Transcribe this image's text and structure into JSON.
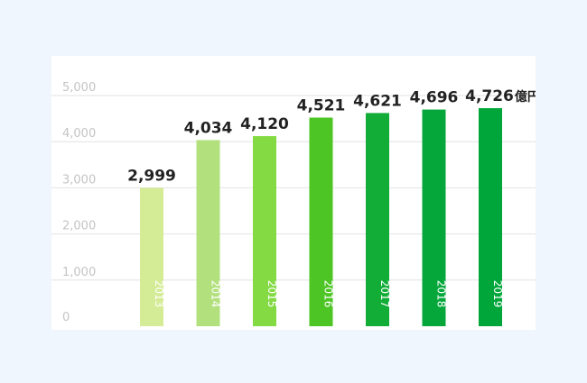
{
  "chart_data": {
    "type": "bar",
    "title": "",
    "xlabel": "",
    "ylabel": "",
    "unit": "億円",
    "categories": [
      "2013",
      "2014",
      "2015",
      "2016",
      "2017",
      "2018",
      "2019"
    ],
    "values": [
      2999,
      4034,
      4120,
      4521,
      4621,
      4696,
      4726
    ],
    "value_labels": [
      "2,999",
      "4,034",
      "4,120",
      "4,521",
      "4,621",
      "4,696",
      "4,726"
    ],
    "ylim": [
      0,
      5000
    ],
    "yticks": [
      0,
      1000,
      2000,
      3000,
      4000,
      5000
    ],
    "ytick_labels": [
      "0",
      "1,000",
      "2,000",
      "3,000",
      "4,000",
      "5,000"
    ],
    "grid": true,
    "legend": "none",
    "colors": [
      "#d4ec95",
      "#b2e07d",
      "#83da42",
      "#4dc524",
      "#12ad37",
      "#05a73b",
      "#00a63a"
    ]
  }
}
